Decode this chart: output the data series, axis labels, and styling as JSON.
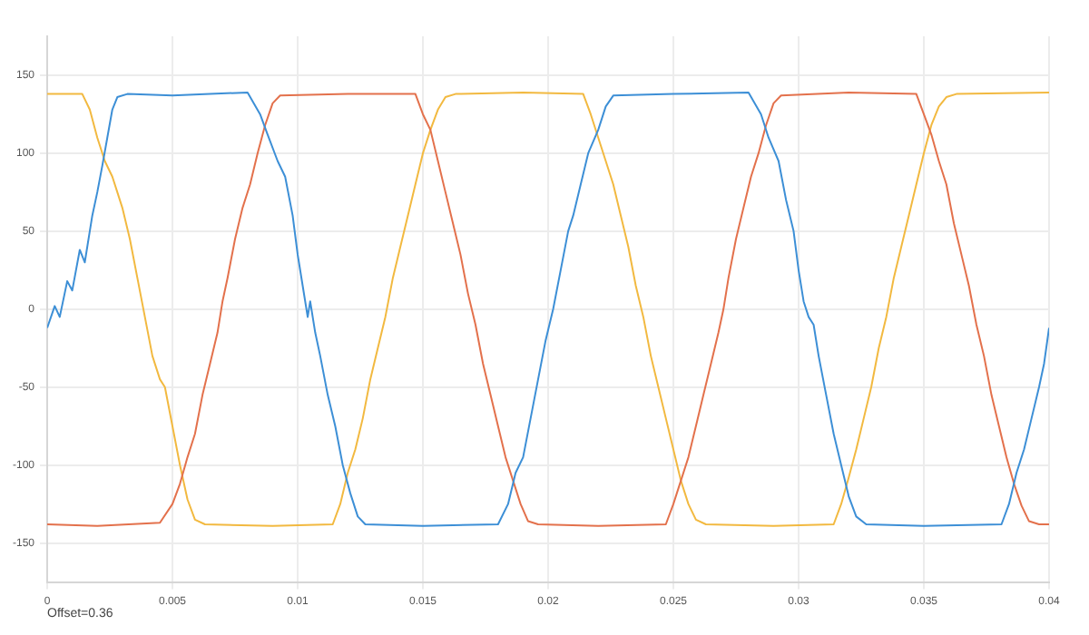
{
  "chart_data": {
    "type": "line",
    "xlim": [
      0,
      0.04
    ],
    "xticks": [
      0,
      0.005,
      0.01,
      0.015,
      0.02,
      0.025,
      0.03,
      0.035,
      0.04
    ],
    "ylim": [
      -175,
      175
    ],
    "yticks": [
      -150,
      -100,
      -50,
      0,
      50,
      100,
      150
    ],
    "grid": true,
    "legend": false,
    "marker": "none",
    "line_style": "solid",
    "annotations": [
      "Offset=0.36"
    ],
    "series": [
      {
        "color": "#3d8fd6",
        "x": [
          0,
          0.0003,
          0.0005,
          0.0008,
          0.001,
          0.0013,
          0.0015,
          0.0018,
          0.002,
          0.0022,
          0.0024,
          0.0026,
          0.0028,
          0.0032,
          0.005,
          0.0065,
          0.008,
          0.0085,
          0.0088,
          0.0092,
          0.0095,
          0.0098,
          0.01,
          0.0102,
          0.0104,
          0.0105,
          0.0107,
          0.0109,
          0.0112,
          0.0115,
          0.0118,
          0.0121,
          0.0124,
          0.0127,
          0.015,
          0.018,
          0.0184,
          0.0187,
          0.019,
          0.0193,
          0.0196,
          0.0199,
          0.0202,
          0.0205,
          0.0208,
          0.021,
          0.0213,
          0.0216,
          0.022,
          0.0223,
          0.0226,
          0.025,
          0.028,
          0.0285,
          0.0288,
          0.0292,
          0.0295,
          0.0298,
          0.03,
          0.0302,
          0.0304,
          0.0306,
          0.0308,
          0.0311,
          0.0314,
          0.0317,
          0.032,
          0.0323,
          0.0327,
          0.035,
          0.0381,
          0.0384,
          0.0387,
          0.039,
          0.0393,
          0.0396,
          0.0398,
          0.04
        ],
        "values": [
          -12,
          2,
          -5,
          18,
          12,
          38,
          30,
          60,
          75,
          92,
          110,
          128,
          136,
          138,
          137,
          138,
          139,
          125,
          112,
          95,
          85,
          60,
          35,
          15,
          -5,
          5,
          -15,
          -30,
          -55,
          -75,
          -100,
          -118,
          -133,
          -138,
          -139,
          -138,
          -125,
          -105,
          -95,
          -70,
          -45,
          -20,
          0,
          25,
          50,
          60,
          80,
          100,
          115,
          130,
          137,
          138,
          139,
          125,
          110,
          95,
          70,
          50,
          25,
          5,
          -5,
          -10,
          -30,
          -55,
          -80,
          -100,
          -120,
          -133,
          -138,
          -139,
          -138,
          -125,
          -105,
          -90,
          -70,
          -50,
          -35,
          -12
        ]
      },
      {
        "color": "#e3714c",
        "x": [
          0,
          0.002,
          0.0045,
          0.005,
          0.0053,
          0.0056,
          0.0059,
          0.0062,
          0.0065,
          0.0068,
          0.007,
          0.0072,
          0.0075,
          0.0078,
          0.0081,
          0.0084,
          0.0087,
          0.009,
          0.0093,
          0.012,
          0.0147,
          0.015,
          0.0153,
          0.0156,
          0.0159,
          0.0162,
          0.0165,
          0.0168,
          0.0171,
          0.0174,
          0.0177,
          0.018,
          0.0183,
          0.0186,
          0.0189,
          0.0192,
          0.0196,
          0.022,
          0.0247,
          0.025,
          0.0253,
          0.0256,
          0.0259,
          0.0262,
          0.0265,
          0.0268,
          0.027,
          0.0272,
          0.0275,
          0.0278,
          0.0281,
          0.0284,
          0.0287,
          0.029,
          0.0293,
          0.032,
          0.0347,
          0.035,
          0.0353,
          0.0356,
          0.0359,
          0.0362,
          0.0365,
          0.0368,
          0.0371,
          0.0374,
          0.0377,
          0.038,
          0.0383,
          0.0386,
          0.0389,
          0.0392,
          0.0396,
          0.04
        ],
        "values": [
          -138,
          -139,
          -137,
          -125,
          -112,
          -95,
          -80,
          -55,
          -35,
          -15,
          5,
          20,
          45,
          65,
          80,
          100,
          118,
          132,
          137,
          138,
          138,
          125,
          115,
          95,
          75,
          55,
          35,
          10,
          -10,
          -35,
          -55,
          -75,
          -95,
          -110,
          -125,
          -136,
          -138,
          -139,
          -138,
          -125,
          -110,
          -95,
          -75,
          -55,
          -35,
          -15,
          0,
          20,
          45,
          65,
          85,
          100,
          118,
          132,
          137,
          139,
          138,
          125,
          112,
          95,
          80,
          55,
          35,
          15,
          -10,
          -30,
          -55,
          -75,
          -95,
          -112,
          -126,
          -136,
          -138,
          -138
        ]
      },
      {
        "color": "#f2b940",
        "x": [
          0,
          0.0014,
          0.0017,
          0.002,
          0.0023,
          0.0026,
          0.0028,
          0.003,
          0.0033,
          0.0036,
          0.0039,
          0.0042,
          0.0045,
          0.0047,
          0.005,
          0.0053,
          0.0056,
          0.0059,
          0.0063,
          0.009,
          0.0114,
          0.0117,
          0.012,
          0.0123,
          0.0126,
          0.0129,
          0.0132,
          0.0135,
          0.0138,
          0.0141,
          0.0144,
          0.0147,
          0.015,
          0.0153,
          0.0156,
          0.0159,
          0.0163,
          0.019,
          0.0214,
          0.0217,
          0.022,
          0.0223,
          0.0226,
          0.0229,
          0.0232,
          0.0235,
          0.0238,
          0.0241,
          0.0244,
          0.0247,
          0.025,
          0.0253,
          0.0256,
          0.0259,
          0.0263,
          0.029,
          0.0314,
          0.0317,
          0.032,
          0.0323,
          0.0326,
          0.0329,
          0.0332,
          0.0335,
          0.0338,
          0.0341,
          0.0344,
          0.0347,
          0.035,
          0.0353,
          0.0356,
          0.0359,
          0.0363,
          0.04
        ],
        "values": [
          138,
          138,
          128,
          110,
          95,
          85,
          75,
          65,
          45,
          20,
          -5,
          -30,
          -45,
          -50,
          -75,
          -100,
          -122,
          -135,
          -138,
          -139,
          -138,
          -125,
          -105,
          -90,
          -70,
          -45,
          -25,
          -5,
          20,
          40,
          60,
          80,
          100,
          115,
          128,
          136,
          138,
          139,
          138,
          125,
          110,
          95,
          80,
          60,
          40,
          15,
          -5,
          -30,
          -50,
          -70,
          -90,
          -110,
          -125,
          -135,
          -138,
          -139,
          -138,
          -125,
          -108,
          -90,
          -70,
          -50,
          -25,
          -5,
          20,
          40,
          60,
          80,
          100,
          118,
          130,
          136,
          138,
          139
        ]
      }
    ]
  }
}
